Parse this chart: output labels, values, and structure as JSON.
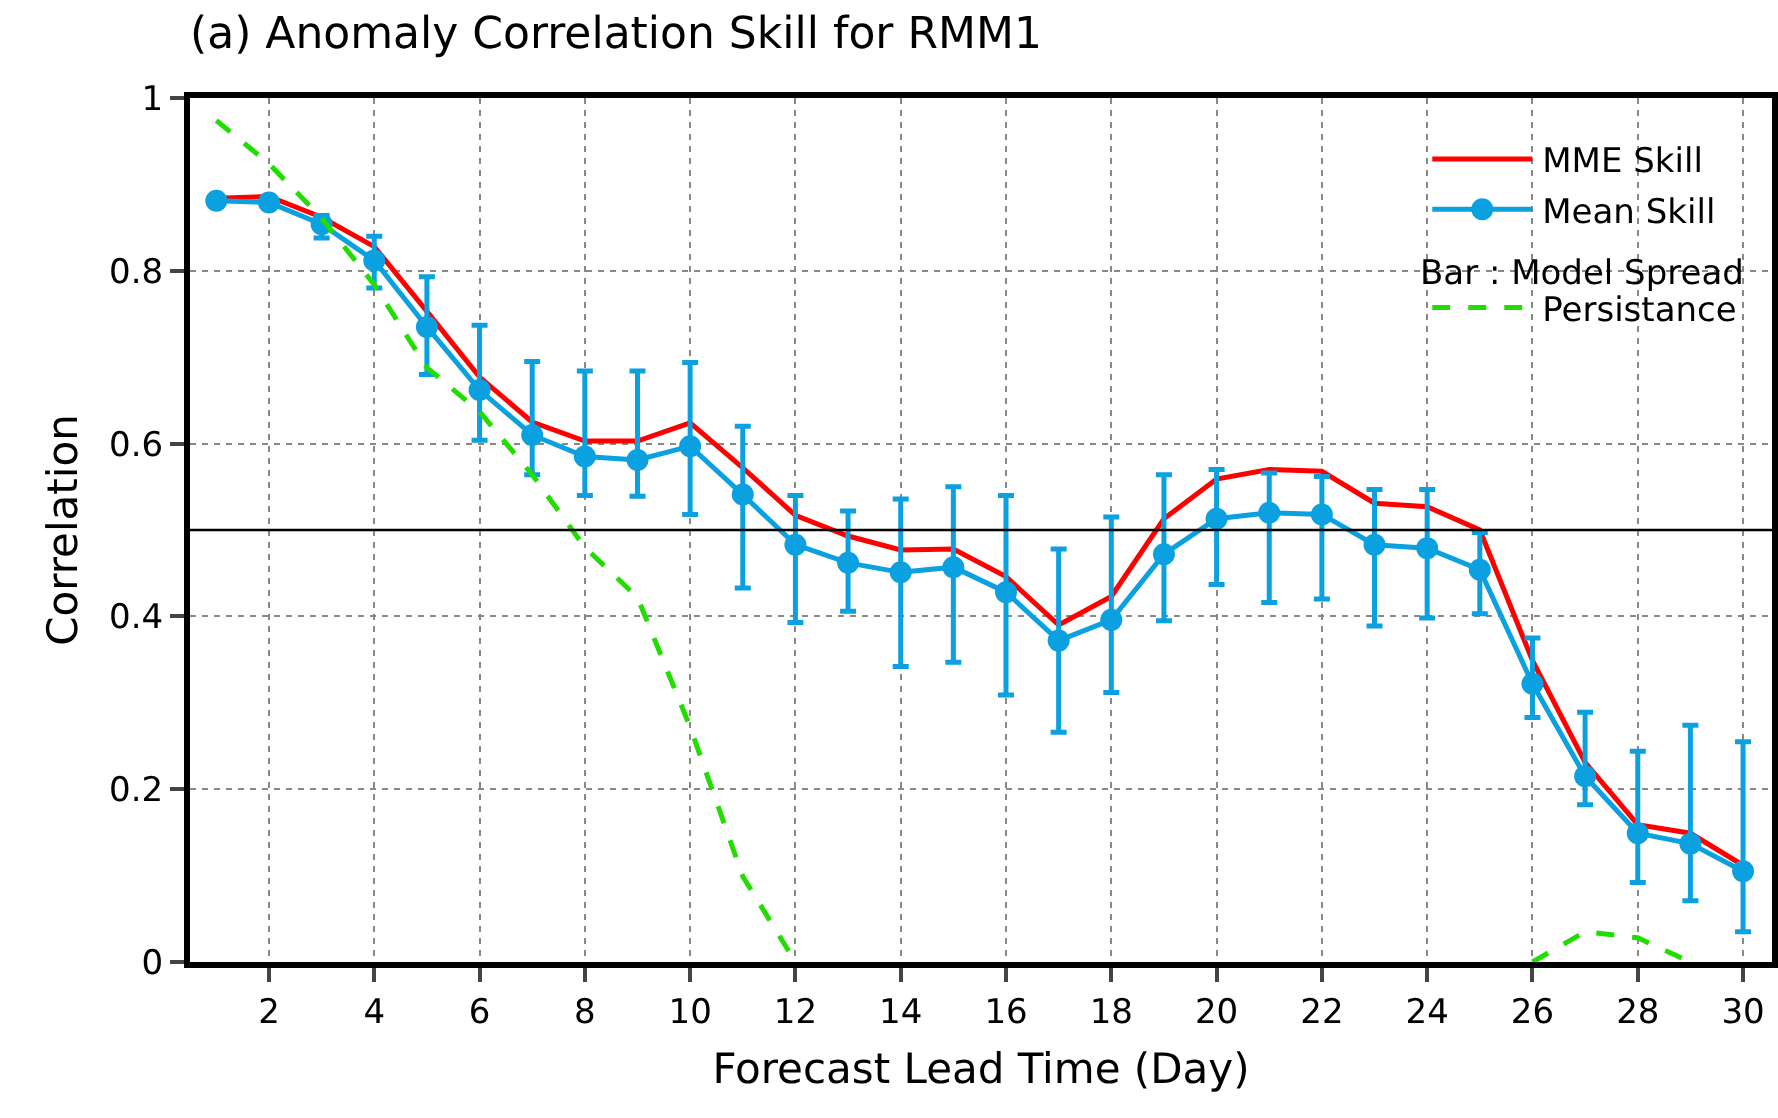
{
  "chart_data": {
    "type": "line",
    "title": "(a) Anomaly Correlation Skill for RMM1",
    "xlabel": "Forecast Lead Time (Day)",
    "ylabel": "Correlation",
    "x": [
      1,
      2,
      3,
      4,
      5,
      6,
      7,
      8,
      9,
      10,
      11,
      12,
      13,
      14,
      15,
      16,
      17,
      18,
      19,
      20,
      21,
      22,
      23,
      24,
      25,
      26,
      27,
      28,
      29,
      30
    ],
    "series": [
      {
        "name": "MME Skill",
        "color": "#ff0000",
        "marker": "none",
        "line_style": "solid",
        "values": [
          0.884,
          0.886,
          0.862,
          0.828,
          0.753,
          0.677,
          0.625,
          0.603,
          0.603,
          0.624,
          0.572,
          0.517,
          0.493,
          0.477,
          0.478,
          0.446,
          0.39,
          0.423,
          0.513,
          0.559,
          0.57,
          0.568,
          0.531,
          0.527,
          0.5,
          0.349,
          0.231,
          0.159,
          0.149,
          0.112
        ]
      },
      {
        "name": "Mean Skill",
        "color": "#0ba0e0",
        "marker": "circle",
        "line_style": "solid",
        "values": [
          0.881,
          0.879,
          0.854,
          0.812,
          0.735,
          0.662,
          0.61,
          0.585,
          0.581,
          0.597,
          0.541,
          0.483,
          0.462,
          0.451,
          0.457,
          0.428,
          0.372,
          0.396,
          0.472,
          0.513,
          0.52,
          0.518,
          0.483,
          0.479,
          0.454,
          0.322,
          0.215,
          0.149,
          0.137,
          0.105
        ],
        "errors": [
          null,
          null,
          [
            0.838,
            0.864
          ],
          [
            0.78,
            0.84
          ],
          [
            0.68,
            0.793
          ],
          [
            0.604,
            0.737
          ],
          [
            0.564,
            0.695
          ],
          [
            0.54,
            0.684
          ],
          [
            0.539,
            0.684
          ],
          [
            0.518,
            0.694
          ],
          [
            0.433,
            0.62
          ],
          [
            0.393,
            0.54
          ],
          [
            0.406,
            0.522
          ],
          [
            0.342,
            0.536
          ],
          [
            0.347,
            0.55
          ],
          [
            0.309,
            0.54
          ],
          [
            0.266,
            0.478
          ],
          [
            0.312,
            0.515
          ],
          [
            0.395,
            0.564
          ],
          [
            0.437,
            0.57
          ],
          [
            0.416,
            0.566
          ],
          [
            0.42,
            0.562
          ],
          [
            0.389,
            0.547
          ],
          [
            0.398,
            0.547
          ],
          [
            0.403,
            0.497
          ],
          [
            0.283,
            0.375
          ],
          [
            0.182,
            0.289
          ],
          [
            0.092,
            0.244
          ],
          [
            0.071,
            0.274
          ],
          [
            0.035,
            0.255
          ]
        ]
      },
      {
        "name": "Persistance",
        "color": "#22dd00",
        "marker": "none",
        "line_style": "dashed",
        "values": [
          0.974,
          0.924,
          0.861,
          0.784,
          0.688,
          0.637,
          0.564,
          0.48,
          0.422,
          0.272,
          0.099,
          0,
          null,
          null,
          null,
          null,
          null,
          null,
          null,
          null,
          null,
          null,
          null,
          null,
          null,
          0,
          0.035,
          0.028,
          0,
          null
        ]
      }
    ],
    "annotations": [
      "Bar : Model Spread"
    ],
    "ref_lines": [
      {
        "axis": "y",
        "value": 0.5,
        "color": "#000000"
      }
    ],
    "xlim": [
      0.5,
      30.55
    ],
    "xticks": [
      2,
      4,
      6,
      8,
      10,
      12,
      14,
      16,
      18,
      20,
      22,
      24,
      26,
      28,
      30
    ],
    "ylim": [
      0,
      1
    ],
    "yticks": [
      0,
      0.2,
      0.4,
      0.6,
      0.8,
      1
    ],
    "grid": true,
    "legend": "top right"
  }
}
